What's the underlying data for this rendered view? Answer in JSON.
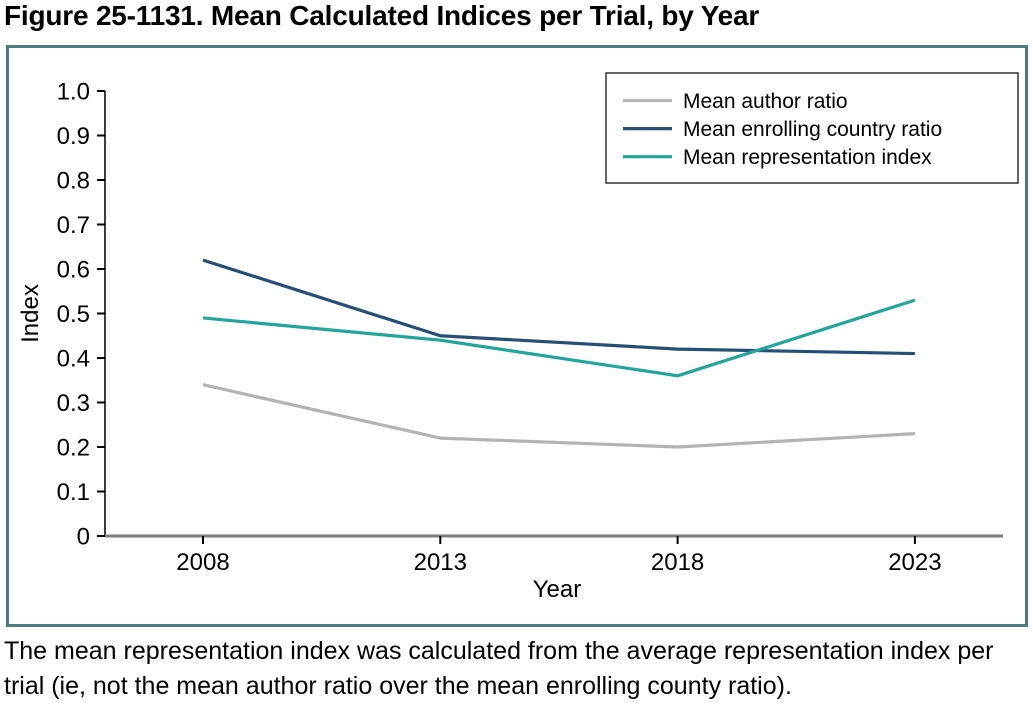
{
  "figure": {
    "title": "Figure 25-1131. Mean Calculated Indices per Trial, by Year",
    "caption": "The mean representation index was calculated from the average representation index per trial (ie, not the mean author ratio over the mean enrolling county ratio)."
  },
  "colors": {
    "box_border": "#4d7a80",
    "axis_spine": "#3d3d3d",
    "zero_line": "#7f7f7f",
    "tick": "#000000",
    "text": "#000000",
    "legend_border": "#333333",
    "legend_bg": "#ffffff"
  },
  "chart_data": {
    "type": "line",
    "title": "",
    "xlabel": "Year",
    "ylabel": "Index",
    "categories": [
      "2008",
      "2013",
      "2018",
      "2023"
    ],
    "ylim": [
      0,
      1.0
    ],
    "yticks": [
      {
        "value": 0.0,
        "label": "0"
      },
      {
        "value": 0.1,
        "label": "0.1"
      },
      {
        "value": 0.2,
        "label": "0.2"
      },
      {
        "value": 0.3,
        "label": "0.3"
      },
      {
        "value": 0.4,
        "label": "0.4"
      },
      {
        "value": 0.5,
        "label": "0.5"
      },
      {
        "value": 0.6,
        "label": "0.6"
      },
      {
        "value": 0.7,
        "label": "0.7"
      },
      {
        "value": 0.8,
        "label": "0.8"
      },
      {
        "value": 0.9,
        "label": "0.9"
      },
      {
        "value": 1.0,
        "label": "1.0"
      }
    ],
    "grid": false,
    "legend_position": "top-right",
    "series": [
      {
        "name": "Mean author ratio",
        "color": "#b3b3b6",
        "values": [
          0.34,
          0.22,
          0.2,
          0.23
        ]
      },
      {
        "name": "Mean enrolling country ratio",
        "color": "#254f74",
        "values": [
          0.62,
          0.45,
          0.42,
          0.41
        ]
      },
      {
        "name": "Mean representation index",
        "color": "#21a69b",
        "values": [
          0.49,
          0.44,
          0.36,
          0.53
        ]
      }
    ]
  }
}
